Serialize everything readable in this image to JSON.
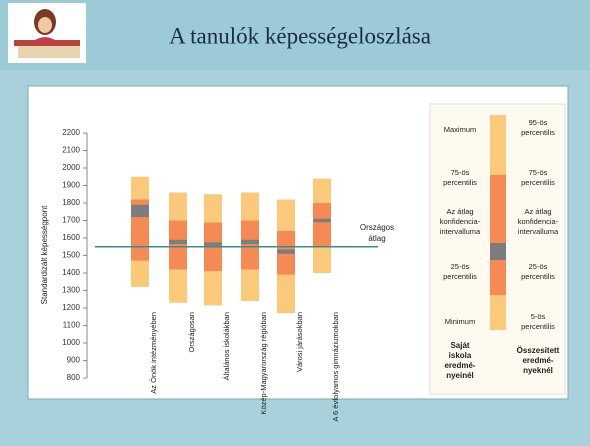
{
  "header": {
    "title": "A tanulók képességeloszlása"
  },
  "chart_data": {
    "type": "percentile-bar",
    "y_label": "Standardizált képességpont",
    "categories": [
      "Az Önök intézményében",
      "Országosan",
      "Általános iskolákban",
      "Közép-Magyarország régióban",
      "Városi járásokban",
      "A 6 évfolyamos gimnáziumokban"
    ],
    "stats": {
      "p5": [
        1320,
        1230,
        1215,
        1240,
        1170,
        1400
      ],
      "p25": [
        1470,
        1420,
        1410,
        1420,
        1390,
        1550
      ],
      "ci_low": [
        1720,
        1565,
        1555,
        1565,
        1510,
        1690
      ],
      "ci_high": [
        1790,
        1590,
        1575,
        1590,
        1535,
        1710
      ],
      "p75": [
        1820,
        1700,
        1690,
        1700,
        1640,
        1800
      ],
      "p95": [
        1950,
        1860,
        1850,
        1860,
        1820,
        1940
      ]
    },
    "colors": {
      "outer": "#fbc97a",
      "inner": "#f58a55",
      "ci": "#7d7d7d"
    },
    "reference": {
      "value": 1550,
      "lines": [
        "Országos",
        "átlag"
      ],
      "color": "#3a8c8c"
    },
    "ylim": [
      800,
      2200
    ],
    "yticks": [
      800,
      900,
      1000,
      1100,
      1200,
      1300,
      1400,
      1500,
      1600,
      1700,
      1800,
      1900,
      2000,
      2100,
      2200
    ]
  },
  "legend": {
    "left": [
      [
        "Maximum"
      ],
      [
        "75-ös",
        "percentilis"
      ],
      [
        "Az átlag",
        "konfidencia-",
        "intervalluma"
      ],
      [
        "25-ös",
        "percentilis"
      ],
      [
        "Minimum"
      ]
    ],
    "left_caption": [
      "Saját",
      "iskola",
      "eredmé-",
      "nyeinél"
    ],
    "right": [
      [
        "95-ös",
        "percentilis"
      ],
      [
        "75-ös",
        "percentilis"
      ],
      [
        "Az átlag",
        "konfidencia-",
        "intervalluma"
      ],
      [
        "25-ös",
        "percentilis"
      ],
      [
        "5-ös",
        "percentilis"
      ]
    ],
    "right_caption": [
      "Összesített",
      "eredmé-",
      "nyeknél"
    ]
  }
}
